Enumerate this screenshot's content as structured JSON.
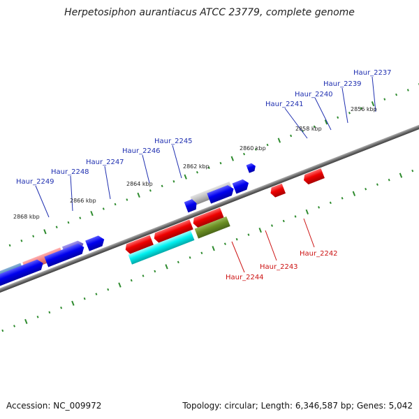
{
  "title": "Herpetosiphon aurantiacus ATCC 23779, complete genome",
  "footer": {
    "accession": "Accession: NC_009972",
    "topology": "Topology: circular; Length: 6,346,587 bp; Genes: 5,042"
  },
  "colors": {
    "backbone": "#7a7a7a",
    "tick": "#2e8b2e",
    "label_forward": "#1f2fb0",
    "label_reverse": "#cc1111"
  },
  "kbp_marks": [
    "2868 kbp",
    "2866 kbp",
    "2864 kbp",
    "2862 kbp",
    "2860 kbp",
    "2858 kbp",
    "2856 kbp"
  ],
  "forward_labels": [
    "Haur_2249",
    "Haur_2248",
    "Haur_2247",
    "Haur_2246",
    "Haur_2245",
    "Haur_2241",
    "Haur_2240",
    "Haur_2239",
    "Haur_2237"
  ],
  "reverse_labels": [
    "Haur_2244",
    "Haur_2243",
    "Haur_2242"
  ]
}
